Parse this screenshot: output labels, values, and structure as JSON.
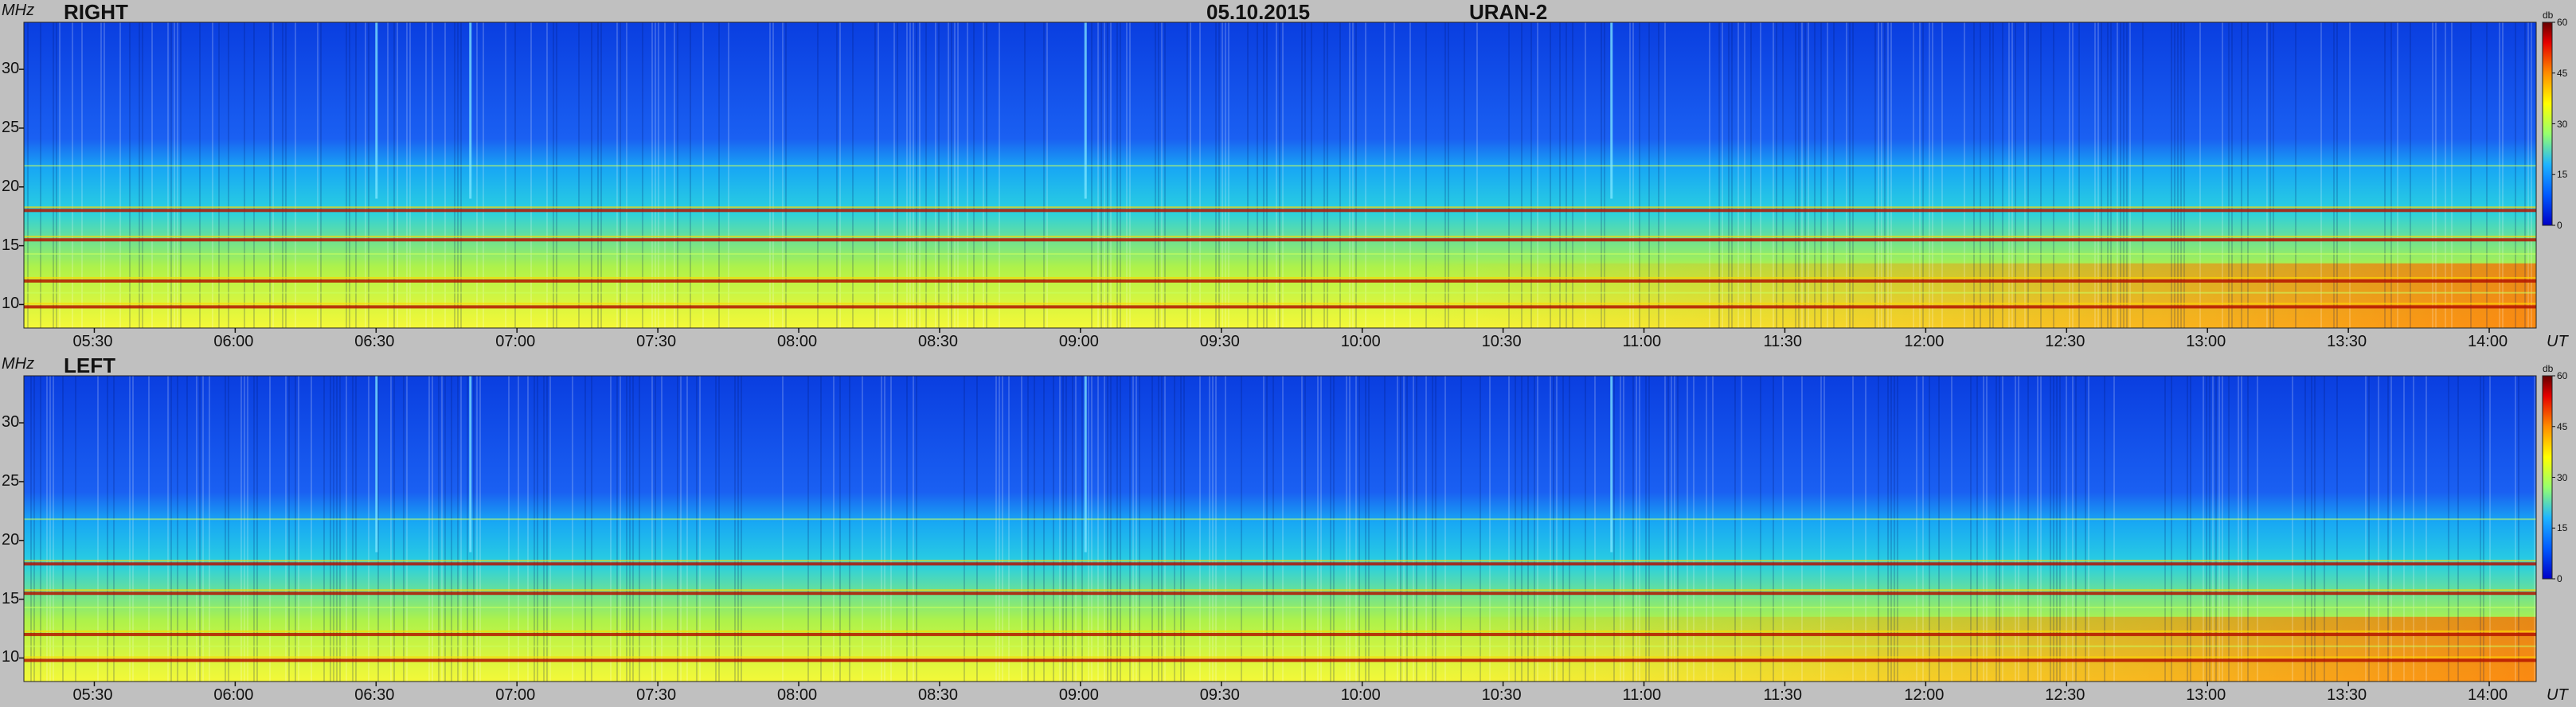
{
  "header": {
    "date": "05.10.2015",
    "instrument": "URAN-2"
  },
  "units": {
    "frequency": "MHz",
    "time": "UT",
    "colorbar": "db"
  },
  "chart_data": [
    {
      "type": "heatmap",
      "title": "RIGHT",
      "ylabel": "MHz",
      "xlabel": "UT",
      "ylim": [
        8,
        34
      ],
      "xlim": [
        "05:15",
        "14:10"
      ],
      "y_ticks": [
        10,
        15,
        20,
        25,
        30
      ],
      "x_ticks": [
        "05:30",
        "06:00",
        "06:30",
        "07:00",
        "07:30",
        "08:00",
        "08:30",
        "09:00",
        "09:30",
        "10:00",
        "10:30",
        "11:00",
        "11:30",
        "12:00",
        "12:30",
        "13:00",
        "13:30",
        "14:00"
      ],
      "colorbar": {
        "label": "db",
        "range": [
          0,
          60
        ],
        "ticks": [
          0,
          15,
          30,
          45,
          60
        ]
      },
      "colormap": [
        "#0000c8",
        "#005aff",
        "#1eb4ff",
        "#96ff6e",
        "#ffff00",
        "#ff8c00",
        "#e60000",
        "#640000"
      ],
      "features": {
        "strong_lines_mhz": [
          18,
          15.5,
          12,
          9.8
        ],
        "bright_narrow_lines_mhz": [
          21.8,
          14.3,
          11
        ],
        "vertical_bursts": [
          "06:30",
          "06:50",
          "09:01",
          "10:53"
        ]
      }
    },
    {
      "type": "heatmap",
      "title": "LEFT",
      "ylabel": "MHz",
      "xlabel": "UT",
      "ylim": [
        8,
        34
      ],
      "xlim": [
        "05:15",
        "14:10"
      ],
      "y_ticks": [
        10,
        15,
        20,
        25,
        30
      ],
      "x_ticks": [
        "05:30",
        "06:00",
        "06:30",
        "07:00",
        "07:30",
        "08:00",
        "08:30",
        "09:00",
        "09:30",
        "10:00",
        "10:30",
        "11:00",
        "11:30",
        "12:00",
        "12:30",
        "13:00",
        "13:30",
        "14:00"
      ],
      "colorbar": {
        "label": "db",
        "range": [
          0,
          60
        ],
        "ticks": [
          0,
          15,
          30,
          45,
          60
        ]
      },
      "colormap": [
        "#0000c8",
        "#005aff",
        "#1eb4ff",
        "#96ff6e",
        "#ffff00",
        "#ff8c00",
        "#e60000",
        "#640000"
      ],
      "features": {
        "strong_lines_mhz": [
          18,
          15.5,
          12,
          9.8
        ],
        "bright_narrow_lines_mhz": [
          21.8,
          14.3,
          11
        ],
        "vertical_bursts": [
          "06:30",
          "06:50",
          "09:01",
          "10:53"
        ]
      }
    }
  ]
}
